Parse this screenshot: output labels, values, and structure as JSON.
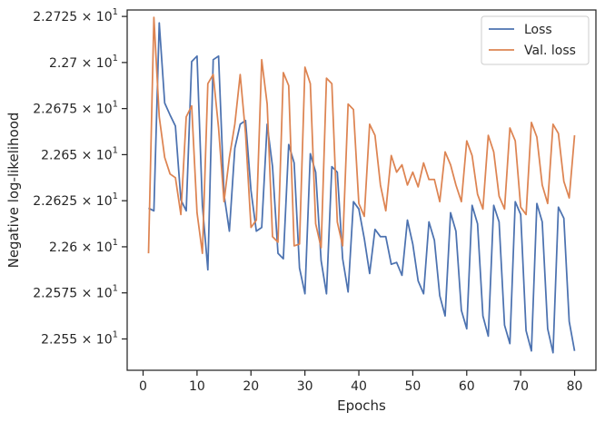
{
  "chart_data": {
    "type": "line",
    "xlabel": "Epochs",
    "ylabel": "Negative log-likelihood",
    "xlim": [
      -2.95,
      83.95
    ],
    "ylim": [
      22.533,
      22.7285
    ],
    "xticks": [
      0,
      10,
      20,
      30,
      40,
      50,
      60,
      70,
      80
    ],
    "yticks": [
      {
        "value": 22.55,
        "mantissa": "2.255"
      },
      {
        "value": 22.575,
        "mantissa": "2.2575"
      },
      {
        "value": 22.6,
        "mantissa": "2.26"
      },
      {
        "value": 22.625,
        "mantissa": "2.2625"
      },
      {
        "value": 22.65,
        "mantissa": "2.265"
      },
      {
        "value": 22.675,
        "mantissa": "2.2675"
      },
      {
        "value": 22.7,
        "mantissa": "2.27"
      },
      {
        "value": 22.725,
        "mantissa": "2.2725"
      }
    ],
    "ytick_suffix": "× 10",
    "ytick_exponent": "1",
    "grid": false,
    "legend_placement": "top-right",
    "series": [
      {
        "name": "Loss",
        "color": "#4c72b0",
        "x": [
          1,
          2,
          3,
          4,
          5,
          6,
          7,
          8,
          9,
          10,
          11,
          12,
          13,
          14,
          15,
          16,
          17,
          18,
          19,
          20,
          21,
          22,
          23,
          24,
          25,
          26,
          27,
          28,
          29,
          30,
          31,
          32,
          33,
          34,
          35,
          36,
          37,
          38,
          39,
          40,
          41,
          42,
          43,
          44,
          45,
          46,
          47,
          48,
          49,
          50,
          51,
          52,
          53,
          54,
          55,
          56,
          57,
          58,
          59,
          60,
          61,
          62,
          63,
          64,
          65,
          66,
          67,
          68,
          69,
          70,
          71,
          72,
          73,
          74,
          75,
          76,
          77,
          78,
          79,
          80
        ],
        "values": [
          22.621,
          22.6195,
          22.7215,
          22.678,
          22.6715,
          22.6655,
          22.6255,
          22.6195,
          22.7005,
          22.7035,
          22.6225,
          22.5875,
          22.7015,
          22.7035,
          22.6285,
          22.6085,
          22.6535,
          22.6665,
          22.6685,
          22.6305,
          22.6085,
          22.6105,
          22.6665,
          22.6435,
          22.5965,
          22.5935,
          22.6555,
          22.6455,
          22.5885,
          22.5745,
          22.6505,
          22.6405,
          22.5925,
          22.5745,
          22.6435,
          22.6405,
          22.5935,
          22.5755,
          22.6245,
          22.6205,
          22.6045,
          22.5855,
          22.6095,
          22.6055,
          22.6055,
          22.5905,
          22.5915,
          22.5845,
          22.6145,
          22.6015,
          22.5815,
          22.5745,
          22.6135,
          22.6035,
          22.5735,
          22.5625,
          22.6185,
          22.6085,
          22.5655,
          22.5555,
          22.6225,
          22.6125,
          22.5625,
          22.5515,
          22.6225,
          22.6135,
          22.5575,
          22.5475,
          22.6245,
          22.6175,
          22.5545,
          22.5435,
          22.6235,
          22.6135,
          22.5555,
          22.5425,
          22.6215,
          22.6155,
          22.5595,
          22.5435
        ]
      },
      {
        "name": "Val. loss",
        "color": "#dd8452",
        "x": [
          1,
          2,
          3,
          4,
          5,
          6,
          7,
          8,
          9,
          10,
          11,
          12,
          13,
          14,
          15,
          16,
          17,
          18,
          19,
          20,
          21,
          22,
          23,
          24,
          25,
          26,
          27,
          28,
          29,
          30,
          31,
          32,
          33,
          34,
          35,
          36,
          37,
          38,
          39,
          40,
          41,
          42,
          43,
          44,
          45,
          46,
          47,
          48,
          49,
          50,
          51,
          52,
          53,
          54,
          55,
          56,
          57,
          58,
          59,
          60,
          61,
          62,
          63,
          64,
          65,
          66,
          67,
          68,
          69,
          70,
          71,
          72,
          73,
          74,
          75,
          76,
          77,
          78,
          79,
          80
        ],
        "values": [
          22.5965,
          22.7245,
          22.6705,
          22.6485,
          22.6395,
          22.6375,
          22.6175,
          22.6705,
          22.6765,
          22.6185,
          22.5965,
          22.6885,
          22.6935,
          22.6645,
          22.6245,
          22.6485,
          22.6665,
          22.6935,
          22.6615,
          22.6105,
          22.6145,
          22.7015,
          22.6775,
          22.6055,
          22.6025,
          22.6945,
          22.6875,
          22.6005,
          22.6015,
          22.6975,
          22.6885,
          22.6125,
          22.5995,
          22.6915,
          22.6885,
          22.6135,
          22.6005,
          22.6775,
          22.6745,
          22.6235,
          22.6165,
          22.6665,
          22.6605,
          22.6335,
          22.6195,
          22.6495,
          22.6405,
          22.6445,
          22.6335,
          22.6405,
          22.6325,
          22.6455,
          22.6365,
          22.6365,
          22.6245,
          22.6515,
          22.6445,
          22.6335,
          22.6245,
          22.6575,
          22.6495,
          22.6285,
          22.6205,
          22.6605,
          22.6515,
          22.6275,
          22.6205,
          22.6645,
          22.6575,
          22.6215,
          22.6175,
          22.6675,
          22.6595,
          22.6335,
          22.6235,
          22.6665,
          22.6615,
          22.6355,
          22.6265,
          22.6605
        ]
      }
    ]
  }
}
